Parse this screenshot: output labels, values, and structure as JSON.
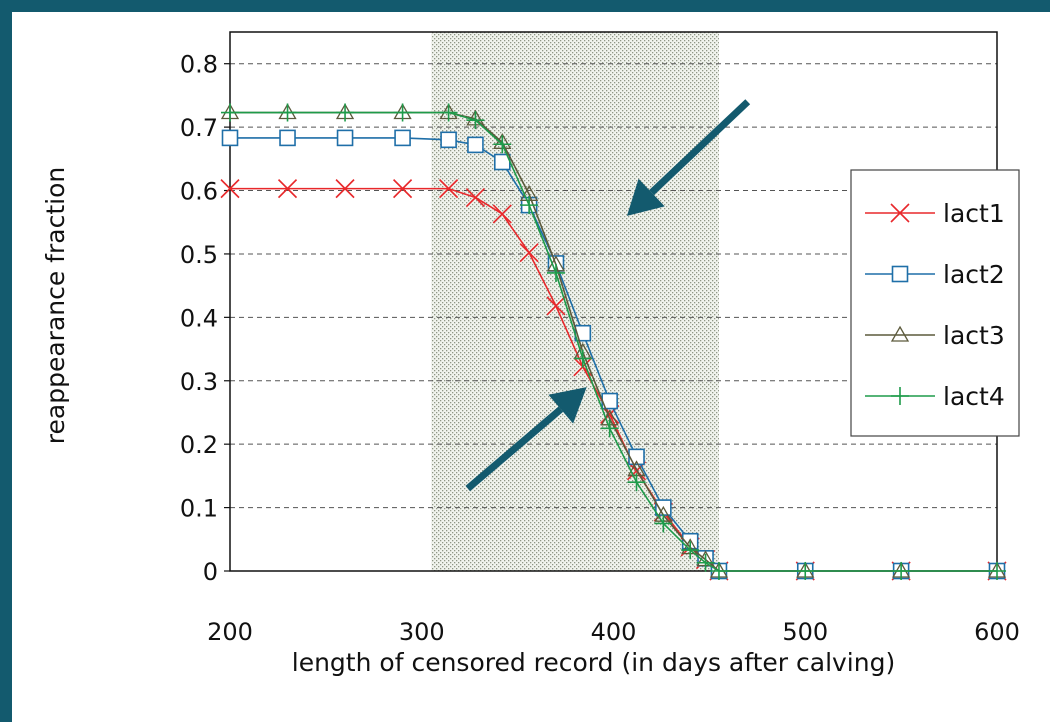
{
  "chart_data": {
    "type": "line",
    "title": "",
    "xlabel": "length of censored record (in days after calving)",
    "ylabel": "reappearance fraction",
    "xlim": [
      200,
      600
    ],
    "ylim": [
      0,
      0.85
    ],
    "xticks": [
      200,
      300,
      400,
      500,
      600
    ],
    "yticks": [
      0,
      0.1,
      0.2,
      0.3,
      0.4,
      0.5,
      0.6,
      0.7,
      0.8
    ],
    "x_tick_labels": [
      "200",
      "300",
      "400",
      "500",
      "600"
    ],
    "y_tick_labels": [
      "0",
      "0.1",
      "0.2",
      "0.3",
      "0.4",
      "0.5",
      "0.6",
      "0.7",
      "0.8"
    ],
    "grid": "horizontal dashed",
    "shaded_region": {
      "x_start": 305,
      "x_end": 455
    },
    "legend_position": "right",
    "series": [
      {
        "name": "lact1",
        "color": "#e8282b",
        "marker": "x",
        "x": [
          200,
          230,
          260,
          290,
          314,
          328,
          342,
          356,
          370,
          384,
          398,
          412,
          426,
          440,
          448,
          455,
          500,
          550,
          600
        ],
        "y": [
          0.603,
          0.603,
          0.603,
          0.603,
          0.603,
          0.589,
          0.563,
          0.502,
          0.418,
          0.322,
          0.247,
          0.158,
          0.093,
          0.038,
          0.018,
          0.0,
          0.0,
          0.0,
          0.0
        ]
      },
      {
        "name": "lact2",
        "color": "#1f6fa8",
        "marker": "square",
        "x": [
          200,
          230,
          260,
          290,
          314,
          328,
          342,
          356,
          370,
          384,
          398,
          412,
          426,
          440,
          448,
          455,
          500,
          550,
          600
        ],
        "y": [
          0.683,
          0.683,
          0.683,
          0.683,
          0.68,
          0.672,
          0.645,
          0.577,
          0.485,
          0.375,
          0.268,
          0.18,
          0.1,
          0.047,
          0.02,
          0.0,
          0.0,
          0.0,
          0.0
        ]
      },
      {
        "name": "lact3",
        "color": "#5c5a3c",
        "marker": "triangle",
        "x": [
          200,
          230,
          260,
          290,
          314,
          328,
          342,
          356,
          370,
          384,
          398,
          412,
          426,
          440,
          448,
          455,
          500,
          550,
          600
        ],
        "y": [
          0.723,
          0.723,
          0.723,
          0.723,
          0.723,
          0.713,
          0.676,
          0.594,
          0.483,
          0.345,
          0.24,
          0.16,
          0.088,
          0.037,
          0.018,
          0.0,
          0.0,
          0.0,
          0.0
        ]
      },
      {
        "name": "lact4",
        "color": "#1e9b4a",
        "marker": "plus",
        "x": [
          200,
          230,
          260,
          290,
          314,
          328,
          342,
          356,
          370,
          384,
          398,
          412,
          426,
          440,
          448,
          455,
          500,
          550,
          600
        ],
        "y": [
          0.723,
          0.723,
          0.723,
          0.723,
          0.723,
          0.711,
          0.673,
          0.577,
          0.47,
          0.335,
          0.225,
          0.14,
          0.075,
          0.033,
          0.013,
          0.0,
          0.0,
          0.0,
          0.0
        ]
      }
    ],
    "annotations": [
      {
        "type": "arrow",
        "color": "#135a6e",
        "from": [
          470,
          0.74
        ],
        "to": [
          407,
          0.56
        ]
      },
      {
        "type": "arrow",
        "color": "#135a6e",
        "from": [
          324,
          0.13
        ],
        "to": [
          386,
          0.29
        ]
      }
    ]
  }
}
